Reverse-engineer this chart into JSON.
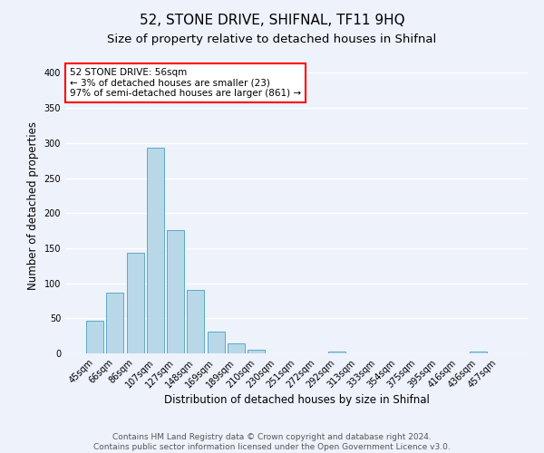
{
  "title": "52, STONE DRIVE, SHIFNAL, TF11 9HQ",
  "subtitle": "Size of property relative to detached houses in Shifnal",
  "xlabel": "Distribution of detached houses by size in Shifnal",
  "ylabel": "Number of detached properties",
  "bin_labels": [
    "45sqm",
    "66sqm",
    "86sqm",
    "107sqm",
    "127sqm",
    "148sqm",
    "169sqm",
    "189sqm",
    "210sqm",
    "230sqm",
    "251sqm",
    "272sqm",
    "292sqm",
    "313sqm",
    "333sqm",
    "354sqm",
    "375sqm",
    "395sqm",
    "416sqm",
    "436sqm",
    "457sqm"
  ],
  "bar_heights": [
    47,
    87,
    144,
    293,
    176,
    91,
    31,
    14,
    5,
    0,
    0,
    0,
    2,
    0,
    0,
    0,
    0,
    0,
    0,
    2,
    0
  ],
  "bar_color": "#b8d8e8",
  "bar_edge_color": "#5aaaca",
  "ylim": [
    0,
    420
  ],
  "yticks": [
    0,
    50,
    100,
    150,
    200,
    250,
    300,
    350,
    400
  ],
  "annotation_title": "52 STONE DRIVE: 56sqm",
  "annotation_line1": "← 3% of detached houses are smaller (23)",
  "annotation_line2": "97% of semi-detached houses are larger (861) →",
  "footer_line1": "Contains HM Land Registry data © Crown copyright and database right 2024.",
  "footer_line2": "Contains public sector information licensed under the Open Government Licence v3.0.",
  "background_color": "#eef2fb",
  "grid_color": "#ffffff",
  "title_fontsize": 11,
  "subtitle_fontsize": 9.5,
  "axis_label_fontsize": 8.5,
  "tick_fontsize": 7,
  "footer_fontsize": 6.5
}
